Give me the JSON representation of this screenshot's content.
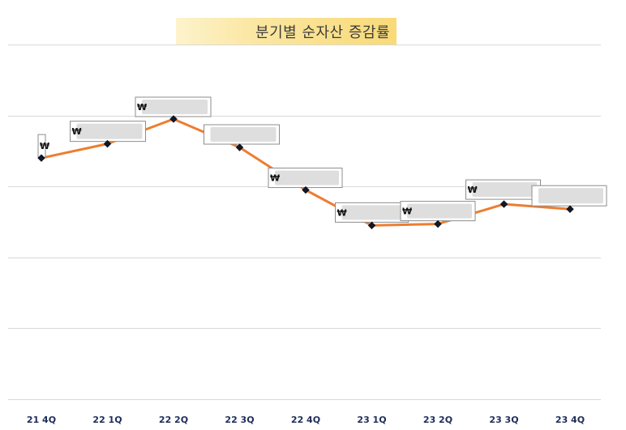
{
  "chart_data": {
    "type": "line",
    "title": "분기별 순자산 증감률",
    "categories": [
      "21 4Q",
      "22 1Q",
      "22 2Q",
      "22 3Q",
      "22 4Q",
      "23 1Q",
      "23 2Q",
      "23 3Q",
      "23 4Q"
    ],
    "series": [
      {
        "values": [
          3.4,
          3.6,
          3.95,
          3.55,
          2.95,
          2.45,
          2.47,
          2.75,
          2.68
        ],
        "color": "#ed7d31",
        "marker_color": "#0f1b3d"
      }
    ],
    "data_labels": [
      "₩",
      "₩",
      "₩",
      "",
      "₩",
      "₩",
      "₩",
      "₩",
      ""
    ],
    "ylim": [
      0,
      5
    ],
    "grid": true,
    "legend": "none",
    "colors": {
      "title_bg": "#f8da78",
      "axis_text": "#1f2d5a",
      "grid": "#d9d9d9"
    }
  }
}
